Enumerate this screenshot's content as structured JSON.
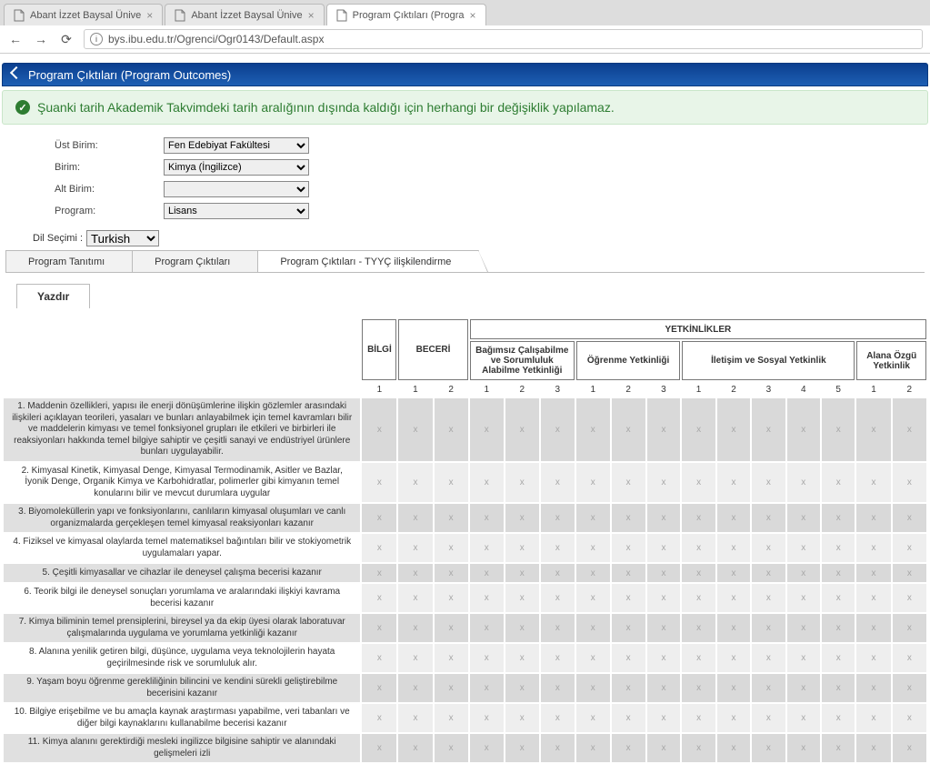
{
  "browser": {
    "tabs": [
      {
        "title": "Abant İzzet Baysal Ünive",
        "active": false
      },
      {
        "title": "Abant İzzet Baysal Ünive",
        "active": false
      },
      {
        "title": "Program Çıktıları (Progra",
        "active": true
      }
    ],
    "url": "bys.ibu.edu.tr/Ogrenci/Ogr0143/Default.aspx"
  },
  "header": {
    "title": "Program Çıktıları (Program Outcomes)"
  },
  "banner": {
    "text": "Şuanki tarih Akademik Takvimdeki tarih aralığının dışında kaldığı için herhangi bir değişiklik yapılamaz."
  },
  "form": {
    "ust_birim": {
      "label": "Üst Birim:",
      "value": "Fen Edebiyat Fakültesi"
    },
    "birim": {
      "label": "Birim:",
      "value": "Kimya (İngilizce)"
    },
    "alt_birim": {
      "label": "Alt Birim:",
      "value": ""
    },
    "program": {
      "label": "Program:",
      "value": "Lisans"
    },
    "dil": {
      "label": "Dil Seçimi :",
      "value": "Turkish"
    }
  },
  "tabs": {
    "t1": "Program Tanıtımı",
    "t2": "Program Çıktıları",
    "t3": "Program Çıktıları - TYYÇ ilişkilendirme"
  },
  "print": {
    "label": "Yazdır"
  },
  "matrix": {
    "top": {
      "bilgi": "BİLGİ",
      "beceri": "BECERİ",
      "yetkinlikler": "YETKİNLİKLER"
    },
    "groups": {
      "g1": "Bağımsız Çalışabilme ve Sorumluluk Alabilme Yetkinliği",
      "g2": "Öğrenme Yetkinliği",
      "g3": "İletişim ve Sosyal Yetkinlik",
      "g4": "Alana Özgü Yetkinlik"
    },
    "nums": {
      "bilgi": [
        "1"
      ],
      "beceri": [
        "1",
        "2"
      ],
      "g1": [
        "1",
        "2",
        "3"
      ],
      "g2": [
        "1",
        "2",
        "3"
      ],
      "g3": [
        "1",
        "2",
        "3",
        "4",
        "5"
      ],
      "g4": [
        "1",
        "2"
      ]
    },
    "cell_mark": "x",
    "rows": [
      "1. Maddenin özellikleri, yapısı ile enerji dönüşümlerine ilişkin gözlemler arasındaki ilişkileri açıklayan teorileri, yasaları ve bunları anlayabilmek için temel kavramları bilir ve maddelerin kimyası ve temel fonksiyonel grupları ile etkileri ve birbirleri ile reaksiyonları hakkında temel bilgiye sahiptir ve çeşitli sanayi ve endüstriyel ürünlere bunları uygulayabilir.",
      "2. Kimyasal Kinetik, Kimyasal Denge, Kimyasal Termodinamik, Asitler ve Bazlar, İyonik Denge, Organik Kimya ve Karbohidratlar, polimerler gibi kimyanın temel konularını bilir ve mevcut durumlara uygular",
      "3. Biyomoleküllerin yapı ve fonksiyonlarını, canlıların kimyasal oluşumları ve canlı organizmalarda gerçekleşen temel kimyasal reaksiyonları kazanır",
      "4. Fiziksel ve kimyasal olaylarda temel matematiksel bağıntıları bilir ve stokiyometrik uygulamaları yapar.",
      "5. Çeşitli kimyasallar ve cihazlar ile deneysel çalışma becerisi kazanır",
      "6. Teorik bilgi ile deneysel sonuçları yorumlama ve aralarındaki ilişkiyi kavrama becerisi kazanır",
      "7. Kimya biliminin temel prensiplerini, bireysel ya da ekip üyesi olarak laboratuvar çalışmalarında uygulama ve yorumlama yetkinliği kazanır",
      "8. Alanına yenilik getiren bilgi, düşünce, uygulama veya teknolojilerin hayata geçirilmesinde risk ve sorumluluk alır.",
      "9. Yaşam boyu öğrenme gerekliliğinin bilincini ve kendini sürekli geliştirebilme becerisini kazanır",
      "10. Bilgiye erişebilme ve bu amaçla kaynak araştırması yapabilme, veri tabanları ve diğer bilgi kaynaklarını kullanabilme becerisi kazanır",
      "11. Kimya alanını gerektirdiği mesleki ingilizce bilgisine sahiptir ve alanındaki gelişmeleri izli"
    ]
  }
}
